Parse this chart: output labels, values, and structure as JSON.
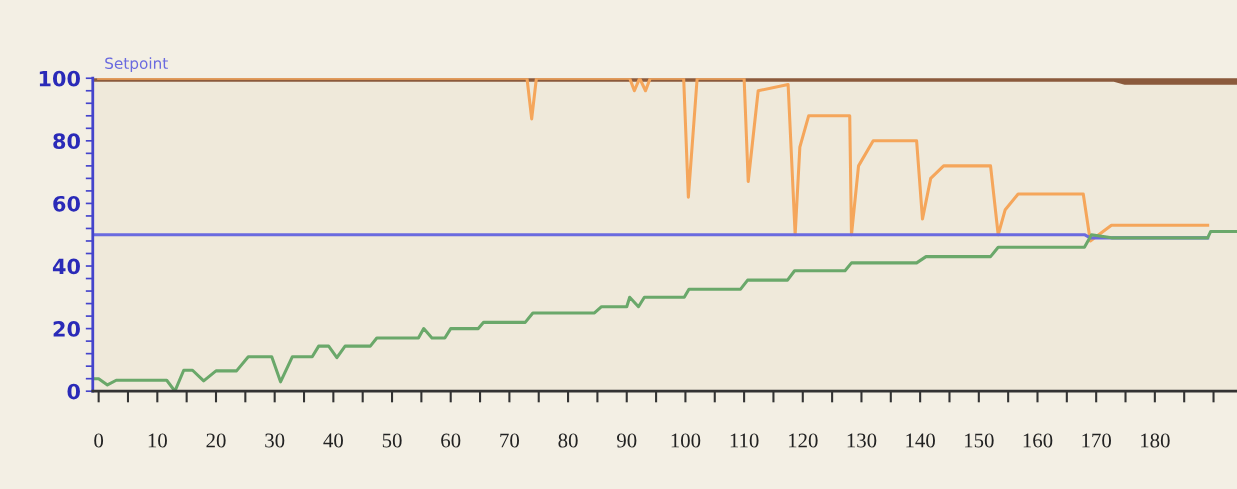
{
  "chart_data": {
    "type": "line",
    "xlim": [
      -1,
      194
    ],
    "ylim": [
      0,
      100
    ],
    "xticks": [
      0,
      {
        "value": 5,
        "label": null
      },
      10,
      {
        "value": 15,
        "label": null
      },
      20,
      {
        "value": 25,
        "label": null
      },
      30,
      {
        "value": 35,
        "label": null
      },
      40,
      {
        "value": 45,
        "label": null
      },
      50,
      {
        "value": 55,
        "label": null
      },
      60,
      {
        "value": 65,
        "label": null
      },
      70,
      {
        "value": 75,
        "label": null
      },
      80,
      {
        "value": 85,
        "label": null
      },
      90,
      {
        "value": 95,
        "label": null
      },
      100,
      {
        "value": 105,
        "label": null
      },
      110,
      {
        "value": 115,
        "label": null
      },
      120,
      {
        "value": 125,
        "label": null
      },
      130,
      {
        "value": 135,
        "label": null
      },
      140,
      {
        "value": 145,
        "label": null
      },
      150,
      {
        "value": 155,
        "label": null
      },
      160,
      {
        "value": 165,
        "label": null
      },
      170,
      {
        "value": 175,
        "label": null
      },
      180,
      {
        "value": 185,
        "label": null
      },
      {
        "value": 190,
        "label": null
      }
    ],
    "yticks": [
      0,
      {
        "value": 4,
        "label": null
      },
      {
        "value": 8,
        "label": null
      },
      {
        "value": 12,
        "label": null
      },
      {
        "value": 16,
        "label": null
      },
      20,
      {
        "value": 24,
        "label": null
      },
      {
        "value": 28,
        "label": null
      },
      {
        "value": 32,
        "label": null
      },
      {
        "value": 36,
        "label": null
      },
      40,
      {
        "value": 44,
        "label": null
      },
      {
        "value": 48,
        "label": null
      },
      {
        "value": 52,
        "label": null
      },
      {
        "value": 56,
        "label": null
      },
      60,
      {
        "value": 64,
        "label": null
      },
      {
        "value": 68,
        "label": null
      },
      {
        "value": 72,
        "label": null
      },
      {
        "value": 76,
        "label": null
      },
      80,
      {
        "value": 84,
        "label": null
      },
      {
        "value": 88,
        "label": null
      },
      {
        "value": 92,
        "label": null
      },
      {
        "value": 96,
        "label": null
      },
      100
    ],
    "grid": false,
    "legend": false,
    "marker": "none",
    "line_style": "solid",
    "series": [
      {
        "color": "#8b5a3c",
        "x": [
          -1,
          173,
          175,
          194
        ],
        "values": [
          100,
          100,
          99,
          99
        ]
      },
      {
        "color": "#f5a65b",
        "x": [
          0,
          73,
          73.8,
          74.6,
          90.5,
          91.3,
          92.2,
          93.2,
          94,
          99.7,
          100.5,
          102,
          110,
          110.7,
          112.4,
          117.5,
          118.7,
          119.5,
          121,
          128,
          128.3,
          129.5,
          132,
          139.4,
          140.4,
          141.8,
          144,
          152,
          153.3,
          154.5,
          156.7,
          167.8,
          169,
          172.6,
          189
        ],
        "values": [
          100,
          100,
          87,
          100,
          100,
          96,
          100,
          96,
          100,
          100,
          62,
          100,
          100,
          67,
          96,
          98,
          50,
          78,
          88,
          88,
          50,
          72,
          80,
          80,
          55,
          68,
          72,
          72,
          50,
          58,
          63,
          63,
          48,
          53,
          53
        ]
      },
      {
        "name": "Setpoint",
        "color": "#6a6adf",
        "x": [
          -1,
          168,
          169,
          189
        ],
        "values": [
          50,
          50,
          49,
          49
        ]
      },
      {
        "color": "#6aa86a",
        "x": [
          -1,
          0,
          1.5,
          3,
          11.6,
          13,
          14.5,
          16,
          17.9,
          20,
          23.5,
          25.5,
          29.5,
          31,
          33,
          36.4,
          37.5,
          39.2,
          40.6,
          42,
          46.3,
          47.4,
          54.5,
          55.4,
          56.8,
          59,
          60,
          64.7,
          65.6,
          72.7,
          74,
          84.5,
          85.7,
          90,
          90.5,
          92,
          93,
          99.8,
          100.6,
          109.4,
          110.6,
          117.4,
          118.6,
          127.2,
          128.3,
          139.4,
          141,
          152,
          153.3,
          168,
          169.2,
          172.6,
          189,
          189.5,
          194
        ],
        "values": [
          4,
          4,
          2,
          3.5,
          3.5,
          0,
          6.7,
          6.7,
          3.3,
          6.5,
          6.5,
          11,
          11,
          3,
          11,
          11,
          14.4,
          14.4,
          10.7,
          14.4,
          14.4,
          17,
          17,
          20,
          17,
          17,
          20,
          20,
          22,
          22,
          25,
          25,
          27,
          27,
          30,
          27,
          30,
          30,
          32.6,
          32.6,
          35.5,
          35.5,
          38.5,
          38.5,
          41,
          41,
          43,
          43,
          46,
          46,
          50,
          49,
          49,
          51,
          51
        ]
      }
    ]
  }
}
